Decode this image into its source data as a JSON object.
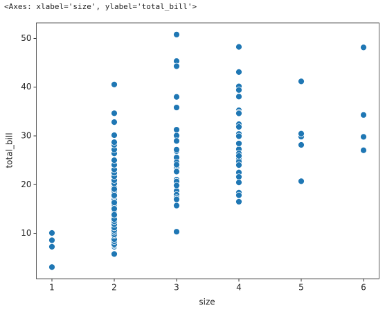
{
  "cell_output": "<Axes: xlabel='size', ylabel='total_bill'>",
  "chart_data": {
    "type": "scatter",
    "xlabel": "size",
    "ylabel": "total_bill",
    "color": "#1f77b4",
    "x": [
      1,
      1,
      1,
      1,
      2,
      2,
      2,
      2,
      2,
      2,
      2,
      2,
      2,
      2,
      2,
      2,
      2,
      2,
      2,
      2,
      2,
      2,
      2,
      2,
      2,
      2,
      2,
      2,
      2,
      2,
      2,
      2,
      2,
      2,
      2,
      2,
      2,
      2,
      2,
      2,
      2,
      2,
      2,
      2,
      2,
      2,
      2,
      2,
      2,
      2,
      3,
      3,
      3,
      3,
      3,
      3,
      3,
      3,
      3,
      3,
      3,
      3,
      3,
      3,
      3,
      3,
      3,
      3,
      3,
      3,
      3,
      3,
      3,
      3,
      3,
      4,
      4,
      4,
      4,
      4,
      4,
      4,
      4,
      4,
      4,
      4,
      4,
      4,
      4,
      4,
      4,
      4,
      4,
      4,
      4,
      4,
      4,
      4,
      4,
      4,
      5,
      5,
      5,
      5,
      5,
      6,
      6,
      6,
      6
    ],
    "values": [
      3.07,
      7.25,
      8.58,
      10.07,
      5.75,
      7.25,
      7.51,
      7.74,
      8.35,
      8.77,
      9.55,
      9.78,
      10.27,
      10.65,
      11.17,
      11.87,
      12.46,
      13.03,
      13.42,
      14.07,
      14.78,
      15.36,
      15.98,
      16.45,
      17.07,
      17.59,
      18.04,
      18.69,
      19.44,
      20.23,
      20.9,
      21.7,
      22.42,
      23.1,
      24.06,
      25.0,
      26.41,
      27.2,
      28.17,
      28.7,
      30.14,
      32.83,
      34.65,
      40.55,
      12.9,
      13.81,
      15.04,
      16.31,
      17.78,
      19.08,
      50.81,
      45.35,
      44.3,
      38.01,
      35.83,
      31.27,
      30.06,
      28.97,
      26.88,
      25.56,
      24.59,
      23.33,
      22.82,
      21.01,
      20.65,
      18.71,
      17.92,
      17.29,
      16.97,
      15.69,
      10.33,
      19.82,
      22.67,
      24.08,
      27.18,
      48.27,
      43.11,
      40.17,
      39.42,
      38.07,
      35.26,
      34.81,
      34.63,
      32.4,
      31.85,
      30.4,
      29.93,
      27.28,
      26.41,
      25.29,
      24.71,
      24.01,
      22.49,
      21.58,
      20.45,
      18.35,
      17.81,
      16.49,
      25.89,
      28.44,
      20.69,
      28.15,
      29.85,
      30.46,
      41.19,
      27.05,
      29.8,
      34.3,
      48.17
    ],
    "xlim": [
      0.75,
      6.25
    ],
    "xticks": [
      1,
      2,
      3,
      4,
      5,
      6
    ],
    "ylim": [
      0.68,
      53.2
    ],
    "yticks": [
      10,
      20,
      30,
      40,
      50
    ]
  }
}
